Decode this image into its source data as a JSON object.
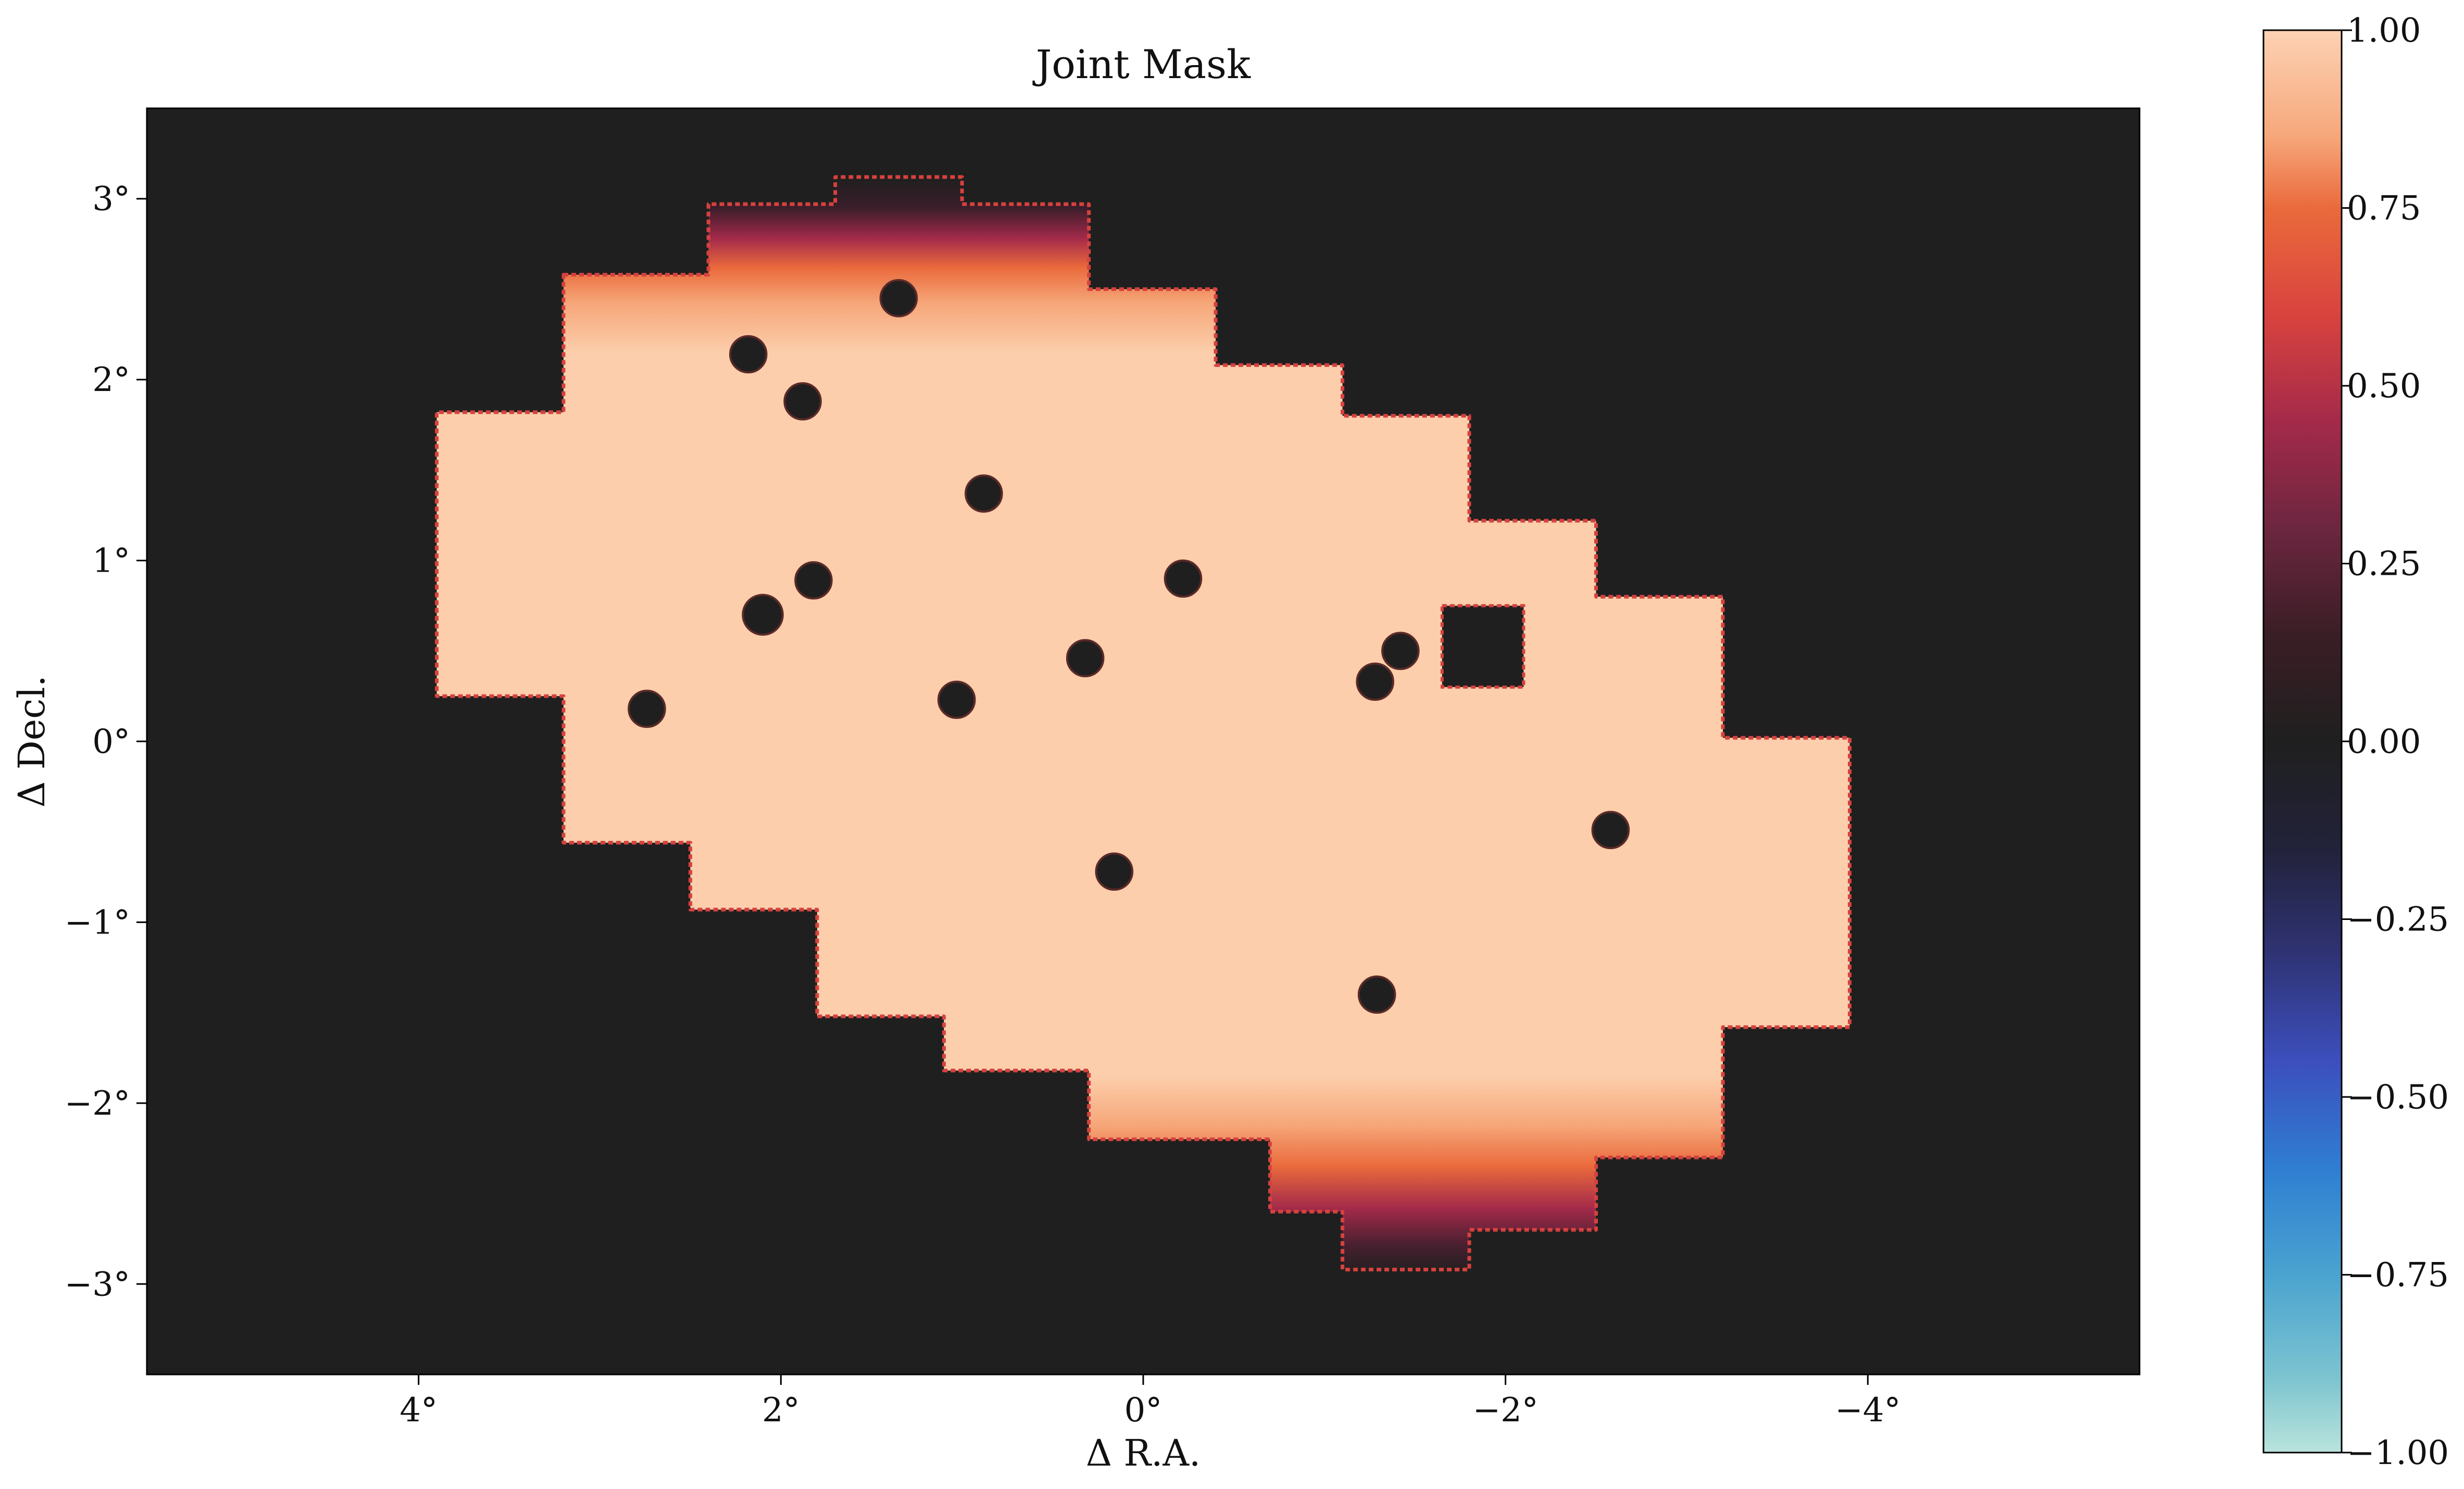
{
  "chart_data": {
    "type": "heatmap",
    "title": "Joint Mask",
    "xlabel": "Δ R.A.",
    "ylabel": "Δ Decl.",
    "xlim": [
      5.5,
      -5.5
    ],
    "ylim": [
      -3.5,
      3.5
    ],
    "x_ticks": [
      {
        "value": 4,
        "label": "4°"
      },
      {
        "value": 2,
        "label": "2°"
      },
      {
        "value": 0,
        "label": "0°"
      },
      {
        "value": -2,
        "label": "−2°"
      },
      {
        "value": -4,
        "label": "−4°"
      }
    ],
    "y_ticks": [
      {
        "value": 3,
        "label": "3°"
      },
      {
        "value": 2,
        "label": "2°"
      },
      {
        "value": 1,
        "label": "1°"
      },
      {
        "value": 0,
        "label": "0°"
      },
      {
        "value": -1,
        "label": "−1°"
      },
      {
        "value": -2,
        "label": "−2°"
      },
      {
        "value": -3,
        "label": "−3°"
      }
    ],
    "background_value": 0,
    "background_color": "#1f1f1f",
    "mask_fill_value": 1.0,
    "mask_fill_color": "#fcceab",
    "mask_edge_color": "#d6413e",
    "mask_region_outline": [
      [
        3.2,
        2.58
      ],
      [
        2.4,
        2.58
      ],
      [
        2.4,
        2.97
      ],
      [
        1.7,
        2.97
      ],
      [
        1.7,
        3.12
      ],
      [
        1.0,
        3.12
      ],
      [
        1.0,
        2.97
      ],
      [
        0.3,
        2.97
      ],
      [
        0.3,
        2.5
      ],
      [
        -0.4,
        2.5
      ],
      [
        -0.4,
        2.08
      ],
      [
        -1.1,
        2.08
      ],
      [
        -1.1,
        1.8
      ],
      [
        -1.8,
        1.8
      ],
      [
        -1.8,
        1.22
      ],
      [
        -2.5,
        1.22
      ],
      [
        -2.5,
        0.8
      ],
      [
        -3.2,
        0.8
      ],
      [
        -3.2,
        0.02
      ],
      [
        -3.9,
        0.02
      ],
      [
        -3.9,
        -1.58
      ],
      [
        -3.2,
        -1.58
      ],
      [
        -3.2,
        -2.3
      ],
      [
        -2.5,
        -2.3
      ],
      [
        -2.5,
        -2.7
      ],
      [
        -1.8,
        -2.7
      ],
      [
        -1.8,
        -2.92
      ],
      [
        -1.1,
        -2.92
      ],
      [
        -1.1,
        -2.6
      ],
      [
        -0.7,
        -2.6
      ],
      [
        -0.7,
        -2.2
      ],
      [
        0.3,
        -2.2
      ],
      [
        0.3,
        -1.82
      ],
      [
        1.1,
        -1.82
      ],
      [
        1.1,
        -1.52
      ],
      [
        1.8,
        -1.52
      ],
      [
        1.8,
        -0.93
      ],
      [
        2.5,
        -0.93
      ],
      [
        2.5,
        -0.56
      ],
      [
        3.2,
        -0.56
      ],
      [
        3.2,
        0.25
      ],
      [
        3.9,
        0.25
      ],
      [
        3.9,
        1.82
      ],
      [
        3.2,
        1.82
      ]
    ],
    "masked_sources": [
      {
        "x": 1.35,
        "y": 2.45,
        "r": 0.1
      },
      {
        "x": 2.18,
        "y": 2.14,
        "r": 0.1
      },
      {
        "x": 1.88,
        "y": 1.88,
        "r": 0.1
      },
      {
        "x": 0.88,
        "y": 1.37,
        "r": 0.1
      },
      {
        "x": 1.82,
        "y": 0.89,
        "r": 0.1
      },
      {
        "x": 2.1,
        "y": 0.7,
        "r": 0.11
      },
      {
        "x": -0.22,
        "y": 0.9,
        "r": 0.1
      },
      {
        "x": 1.03,
        "y": 0.23,
        "r": 0.1
      },
      {
        "x": 0.32,
        "y": 0.46,
        "r": 0.1
      },
      {
        "x": -1.28,
        "y": 0.33,
        "r": 0.1
      },
      {
        "x": -1.42,
        "y": 0.5,
        "r": 0.1
      },
      {
        "x": 2.74,
        "y": 0.18,
        "r": 0.1
      },
      {
        "x": 0.16,
        "y": -0.72,
        "r": 0.1
      },
      {
        "x": -2.58,
        "y": -0.49,
        "r": 0.1
      },
      {
        "x": -1.29,
        "y": -1.4,
        "r": 0.1
      }
    ],
    "masked_rectangle": {
      "x0": -1.65,
      "x1": -2.1,
      "y0": 0.3,
      "y1": 0.75
    },
    "colorbar": {
      "range": [
        -1.0,
        1.0
      ],
      "tick_labels": [
        "1.00",
        "0.75",
        "0.50",
        "0.25",
        "0.00",
        "−0.25",
        "−0.50",
        "−0.75",
        "−1.00"
      ],
      "tick_values": [
        1.0,
        0.75,
        0.5,
        0.25,
        0.0,
        -0.25,
        -0.5,
        -0.75,
        -1.0
      ],
      "stops": [
        {
          "value": 1.0,
          "color": "#fdd2b4"
        },
        {
          "value": 0.85,
          "color": "#f6a77a"
        },
        {
          "value": 0.75,
          "color": "#ea6a3c"
        },
        {
          "value": 0.6,
          "color": "#d9433e"
        },
        {
          "value": 0.45,
          "color": "#a42a4a"
        },
        {
          "value": 0.3,
          "color": "#6d2640"
        },
        {
          "value": 0.15,
          "color": "#3a1e25"
        },
        {
          "value": 0.0,
          "color": "#1f1f1f"
        },
        {
          "value": -0.15,
          "color": "#22223a"
        },
        {
          "value": -0.3,
          "color": "#2f3374"
        },
        {
          "value": -0.45,
          "color": "#3c4fbd"
        },
        {
          "value": -0.6,
          "color": "#2f7ed2"
        },
        {
          "value": -0.75,
          "color": "#4aa3cf"
        },
        {
          "value": -0.9,
          "color": "#7fc5d0"
        },
        {
          "value": -1.0,
          "color": "#b9e4dc"
        }
      ]
    }
  }
}
